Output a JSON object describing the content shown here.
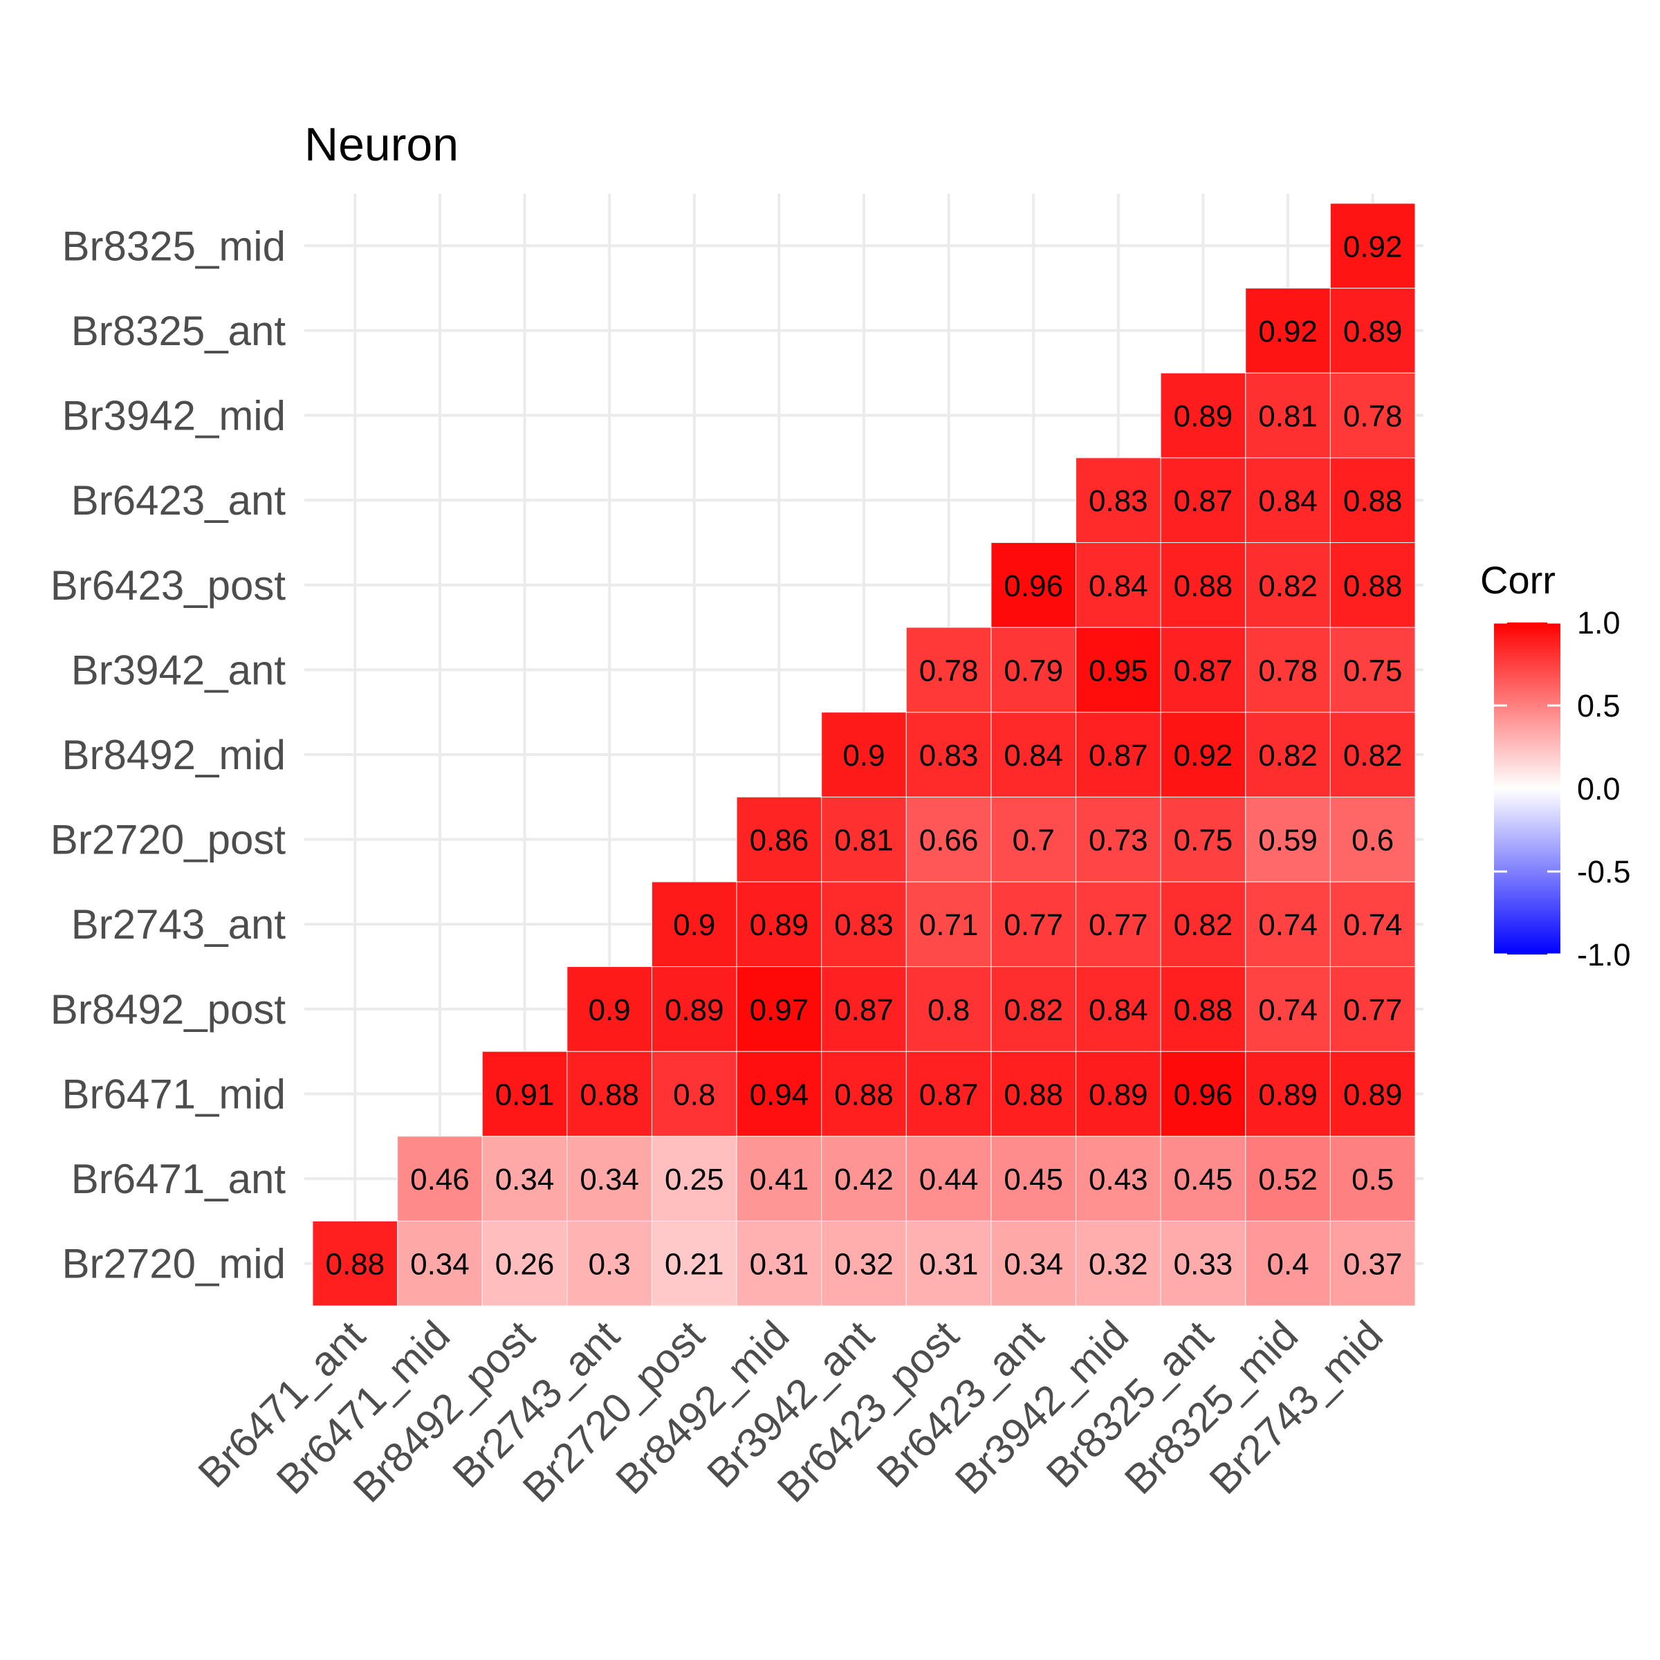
{
  "chart_data": {
    "type": "heatmap",
    "title": "Neuron",
    "x_categories": [
      "Br6471_ant",
      "Br6471_mid",
      "Br8492_post",
      "Br2743_ant",
      "Br2720_post",
      "Br8492_mid",
      "Br3942_ant",
      "Br6423_post",
      "Br6423_ant",
      "Br3942_mid",
      "Br8325_ant",
      "Br8325_mid",
      "Br2743_mid"
    ],
    "y_categories": [
      "Br2720_mid",
      "Br6471_ant",
      "Br6471_mid",
      "Br8492_post",
      "Br2743_ant",
      "Br2720_post",
      "Br8492_mid",
      "Br3942_ant",
      "Br6423_post",
      "Br6423_ant",
      "Br3942_mid",
      "Br8325_ant",
      "Br8325_mid"
    ],
    "values": [
      [
        0.88,
        0.34,
        0.26,
        0.3,
        0.21,
        0.31,
        0.32,
        0.31,
        0.34,
        0.32,
        0.33,
        0.4,
        0.37
      ],
      [
        null,
        0.46,
        0.34,
        0.34,
        0.25,
        0.41,
        0.42,
        0.44,
        0.45,
        0.43,
        0.45,
        0.52,
        0.5
      ],
      [
        null,
        null,
        0.91,
        0.88,
        0.8,
        0.94,
        0.88,
        0.87,
        0.88,
        0.89,
        0.96,
        0.89,
        0.89
      ],
      [
        null,
        null,
        null,
        0.9,
        0.89,
        0.97,
        0.87,
        0.8,
        0.82,
        0.84,
        0.88,
        0.74,
        0.77
      ],
      [
        null,
        null,
        null,
        null,
        0.9,
        0.89,
        0.83,
        0.71,
        0.77,
        0.77,
        0.82,
        0.74,
        0.74
      ],
      [
        null,
        null,
        null,
        null,
        null,
        0.86,
        0.81,
        0.66,
        0.7,
        0.73,
        0.75,
        0.59,
        0.6
      ],
      [
        null,
        null,
        null,
        null,
        null,
        null,
        0.9,
        0.83,
        0.84,
        0.87,
        0.92,
        0.82,
        0.82
      ],
      [
        null,
        null,
        null,
        null,
        null,
        null,
        null,
        0.78,
        0.79,
        0.95,
        0.87,
        0.78,
        0.75
      ],
      [
        null,
        null,
        null,
        null,
        null,
        null,
        null,
        null,
        0.96,
        0.84,
        0.88,
        0.82,
        0.88
      ],
      [
        null,
        null,
        null,
        null,
        null,
        null,
        null,
        null,
        null,
        0.83,
        0.87,
        0.84,
        0.88
      ],
      [
        null,
        null,
        null,
        null,
        null,
        null,
        null,
        null,
        null,
        null,
        0.89,
        0.81,
        0.78
      ],
      [
        null,
        null,
        null,
        null,
        null,
        null,
        null,
        null,
        null,
        null,
        null,
        0.92,
        0.89
      ],
      [
        null,
        null,
        null,
        null,
        null,
        null,
        null,
        null,
        null,
        null,
        null,
        null,
        0.92
      ]
    ],
    "value_labels": [
      [
        "0.88",
        "0.34",
        "0.26",
        "0.3",
        "0.21",
        "0.31",
        "0.32",
        "0.31",
        "0.34",
        "0.32",
        "0.33",
        "0.4",
        "0.37"
      ],
      [
        "",
        "0.46",
        "0.34",
        "0.34",
        "0.25",
        "0.41",
        "0.42",
        "0.44",
        "0.45",
        "0.43",
        "0.45",
        "0.52",
        "0.5"
      ],
      [
        "",
        "",
        "0.91",
        "0.88",
        "0.8",
        "0.94",
        "0.88",
        "0.87",
        "0.88",
        "0.89",
        "0.96",
        "0.89",
        "0.89"
      ],
      [
        "",
        "",
        "",
        "0.9",
        "0.89",
        "0.97",
        "0.87",
        "0.8",
        "0.82",
        "0.84",
        "0.88",
        "0.74",
        "0.77"
      ],
      [
        "",
        "",
        "",
        "",
        "0.9",
        "0.89",
        "0.83",
        "0.71",
        "0.77",
        "0.77",
        "0.82",
        "0.74",
        "0.74"
      ],
      [
        "",
        "",
        "",
        "",
        "",
        "0.86",
        "0.81",
        "0.66",
        "0.7",
        "0.73",
        "0.75",
        "0.59",
        "0.6"
      ],
      [
        "",
        "",
        "",
        "",
        "",
        "",
        "0.9",
        "0.83",
        "0.84",
        "0.87",
        "0.92",
        "0.82",
        "0.82"
      ],
      [
        "",
        "",
        "",
        "",
        "",
        "",
        "",
        "0.78",
        "0.79",
        "0.95",
        "0.87",
        "0.78",
        "0.75"
      ],
      [
        "",
        "",
        "",
        "",
        "",
        "",
        "",
        "",
        "0.96",
        "0.84",
        "0.88",
        "0.82",
        "0.88"
      ],
      [
        "",
        "",
        "",
        "",
        "",
        "",
        "",
        "",
        "",
        "0.83",
        "0.87",
        "0.84",
        "0.88"
      ],
      [
        "",
        "",
        "",
        "",
        "",
        "",
        "",
        "",
        "",
        "",
        "0.89",
        "0.81",
        "0.78"
      ],
      [
        "",
        "",
        "",
        "",
        "",
        "",
        "",
        "",
        "",
        "",
        "",
        "0.92",
        "0.89"
      ],
      [
        "",
        "",
        "",
        "",
        "",
        "",
        "",
        "",
        "",
        "",
        "",
        "",
        "0.92"
      ]
    ],
    "color_scale": {
      "min": -1.0,
      "mid": 0.0,
      "max": 1.0,
      "low_color": "#0000ff",
      "mid_color": "#ffffff",
      "high_color": "#ff0000"
    },
    "legend": {
      "title": "Corr",
      "placement": "right",
      "ticks": [
        1.0,
        0.5,
        0.0,
        -0.5,
        -1.0
      ],
      "tick_labels": [
        "1.0",
        "0.5",
        "0.0",
        "-0.5",
        "-1.0"
      ]
    },
    "grid": true
  }
}
